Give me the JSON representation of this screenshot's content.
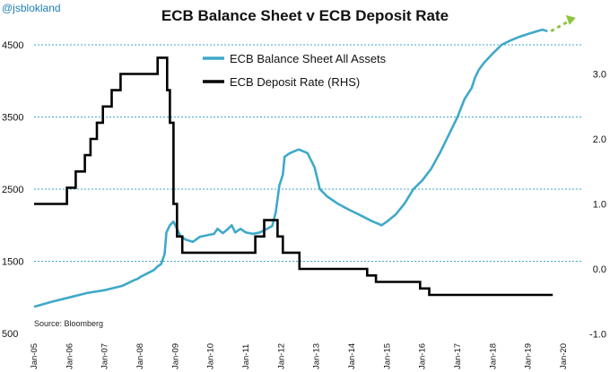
{
  "handle": "@jsblokland",
  "chart_data": {
    "type": "line",
    "title": "ECB Balance Sheet v ECB Deposit Rate",
    "source": "Source: Bloomberg",
    "colors": {
      "balance_sheet": "#3fa9c9",
      "deposit_rate": "#000000",
      "projection": "#8dc63f",
      "grid": "#3fa9c9"
    },
    "x_labels": [
      "Jan-05",
      "Jan-06",
      "Jan-07",
      "Jan-08",
      "Jan-09",
      "Jan-10",
      "Jan-11",
      "Jan-12",
      "Jan-13",
      "Jan-14",
      "Jan-15",
      "Jan-16",
      "Jan-17",
      "Jan-18",
      "Jan-19",
      "Jan-20"
    ],
    "x_range": [
      2005.0,
      2020.25
    ],
    "left_axis": {
      "ticks": [
        500,
        1500,
        2500,
        3500,
        4500
      ],
      "labels": [
        "500",
        "1500",
        "2500",
        "3500",
        "4500"
      ],
      "range": [
        500,
        4500
      ],
      "gridlines": [
        1500,
        2500,
        3500,
        4500
      ]
    },
    "right_axis": {
      "ticks": [
        -1.0,
        0.0,
        1.0,
        2.0,
        3.0
      ],
      "labels": [
        "-1.0",
        "0.0",
        "1.0",
        "2.0",
        "3.0"
      ],
      "range": [
        -1.0,
        3.3
      ]
    },
    "series": [
      {
        "name": "ECB Balance Sheet All Assets",
        "axis": "left",
        "x": [
          2005.0,
          2005.5,
          2006.0,
          2006.5,
          2007.0,
          2007.5,
          2007.8,
          2007.95,
          2008.0,
          2008.2,
          2008.4,
          2008.5,
          2008.6,
          2008.7,
          2008.75,
          2008.85,
          2008.95,
          2009.05,
          2009.15,
          2009.3,
          2009.5,
          2009.7,
          2009.9,
          2010.1,
          2010.2,
          2010.35,
          2010.5,
          2010.6,
          2010.7,
          2010.85,
          2011.0,
          2011.2,
          2011.4,
          2011.6,
          2011.75,
          2011.85,
          2011.95,
          2012.05,
          2012.1,
          2012.25,
          2012.5,
          2012.75,
          2012.95,
          2013.1,
          2013.3,
          2013.6,
          2013.9,
          2014.2,
          2014.4,
          2014.6,
          2014.75,
          2014.85,
          2015.0,
          2015.25,
          2015.5,
          2015.75,
          2016.0,
          2016.25,
          2016.5,
          2016.75,
          2017.0,
          2017.2,
          2017.4,
          2017.5,
          2017.6,
          2017.75,
          2018.0,
          2018.25,
          2018.5,
          2018.75,
          2019.0,
          2019.2,
          2019.4,
          2019.55
        ],
        "values": [
          870,
          940,
          1000,
          1060,
          1100,
          1160,
          1230,
          1260,
          1280,
          1330,
          1380,
          1430,
          1460,
          1600,
          1900,
          2000,
          2050,
          1950,
          1850,
          1800,
          1770,
          1840,
          1860,
          1880,
          1950,
          1890,
          1950,
          2000,
          1900,
          1950,
          1900,
          1880,
          1900,
          1950,
          1990,
          2180,
          2550,
          2700,
          2950,
          3000,
          3050,
          3000,
          2800,
          2500,
          2400,
          2300,
          2220,
          2150,
          2100,
          2050,
          2020,
          2000,
          2050,
          2150,
          2300,
          2500,
          2620,
          2780,
          3000,
          3250,
          3500,
          3750,
          3900,
          4050,
          4150,
          4250,
          4380,
          4500,
          4560,
          4610,
          4650,
          4680,
          4710,
          4690
        ]
      },
      {
        "name": "ECB Deposit Rate (RHS)",
        "axis": "right",
        "x": [
          2005.0,
          2005.93,
          2005.93,
          2006.18,
          2006.18,
          2006.44,
          2006.44,
          2006.6,
          2006.6,
          2006.78,
          2006.78,
          2006.95,
          2006.95,
          2007.2,
          2007.2,
          2007.45,
          2007.45,
          2008.5,
          2008.5,
          2008.77,
          2008.77,
          2008.85,
          2008.85,
          2008.95,
          2008.95,
          2009.05,
          2009.05,
          2009.2,
          2009.2,
          2009.28,
          2009.28,
          2009.38,
          2009.38,
          2011.27,
          2011.27,
          2011.52,
          2011.52,
          2011.9,
          2011.9,
          2012.05,
          2012.05,
          2012.52,
          2012.52,
          2014.44,
          2014.44,
          2014.69,
          2014.69,
          2015.94,
          2015.94,
          2016.2,
          2016.2,
          2019.7
        ],
        "values": [
          1.0,
          1.0,
          1.25,
          1.25,
          1.5,
          1.5,
          1.75,
          1.75,
          2.0,
          2.0,
          2.25,
          2.25,
          2.5,
          2.5,
          2.75,
          2.75,
          3.0,
          3.0,
          3.25,
          3.25,
          2.75,
          2.75,
          2.25,
          2.25,
          1.0,
          1.0,
          0.5,
          0.5,
          0.25,
          0.25,
          0.25,
          0.25,
          0.25,
          0.25,
          0.5,
          0.5,
          0.75,
          0.75,
          0.5,
          0.5,
          0.25,
          0.25,
          0.0,
          0.0,
          -0.1,
          -0.1,
          -0.2,
          -0.2,
          -0.3,
          -0.3,
          -0.4,
          -0.4
        ]
      },
      {
        "name": "projection",
        "axis": "left",
        "x": [
          2019.65,
          2020.3
        ],
        "values": [
          4690,
          4850
        ]
      }
    ],
    "legend": [
      "ECB Balance Sheet All Assets",
      "ECB Deposit Rate (RHS)"
    ],
    "legend_position": "top-center"
  }
}
